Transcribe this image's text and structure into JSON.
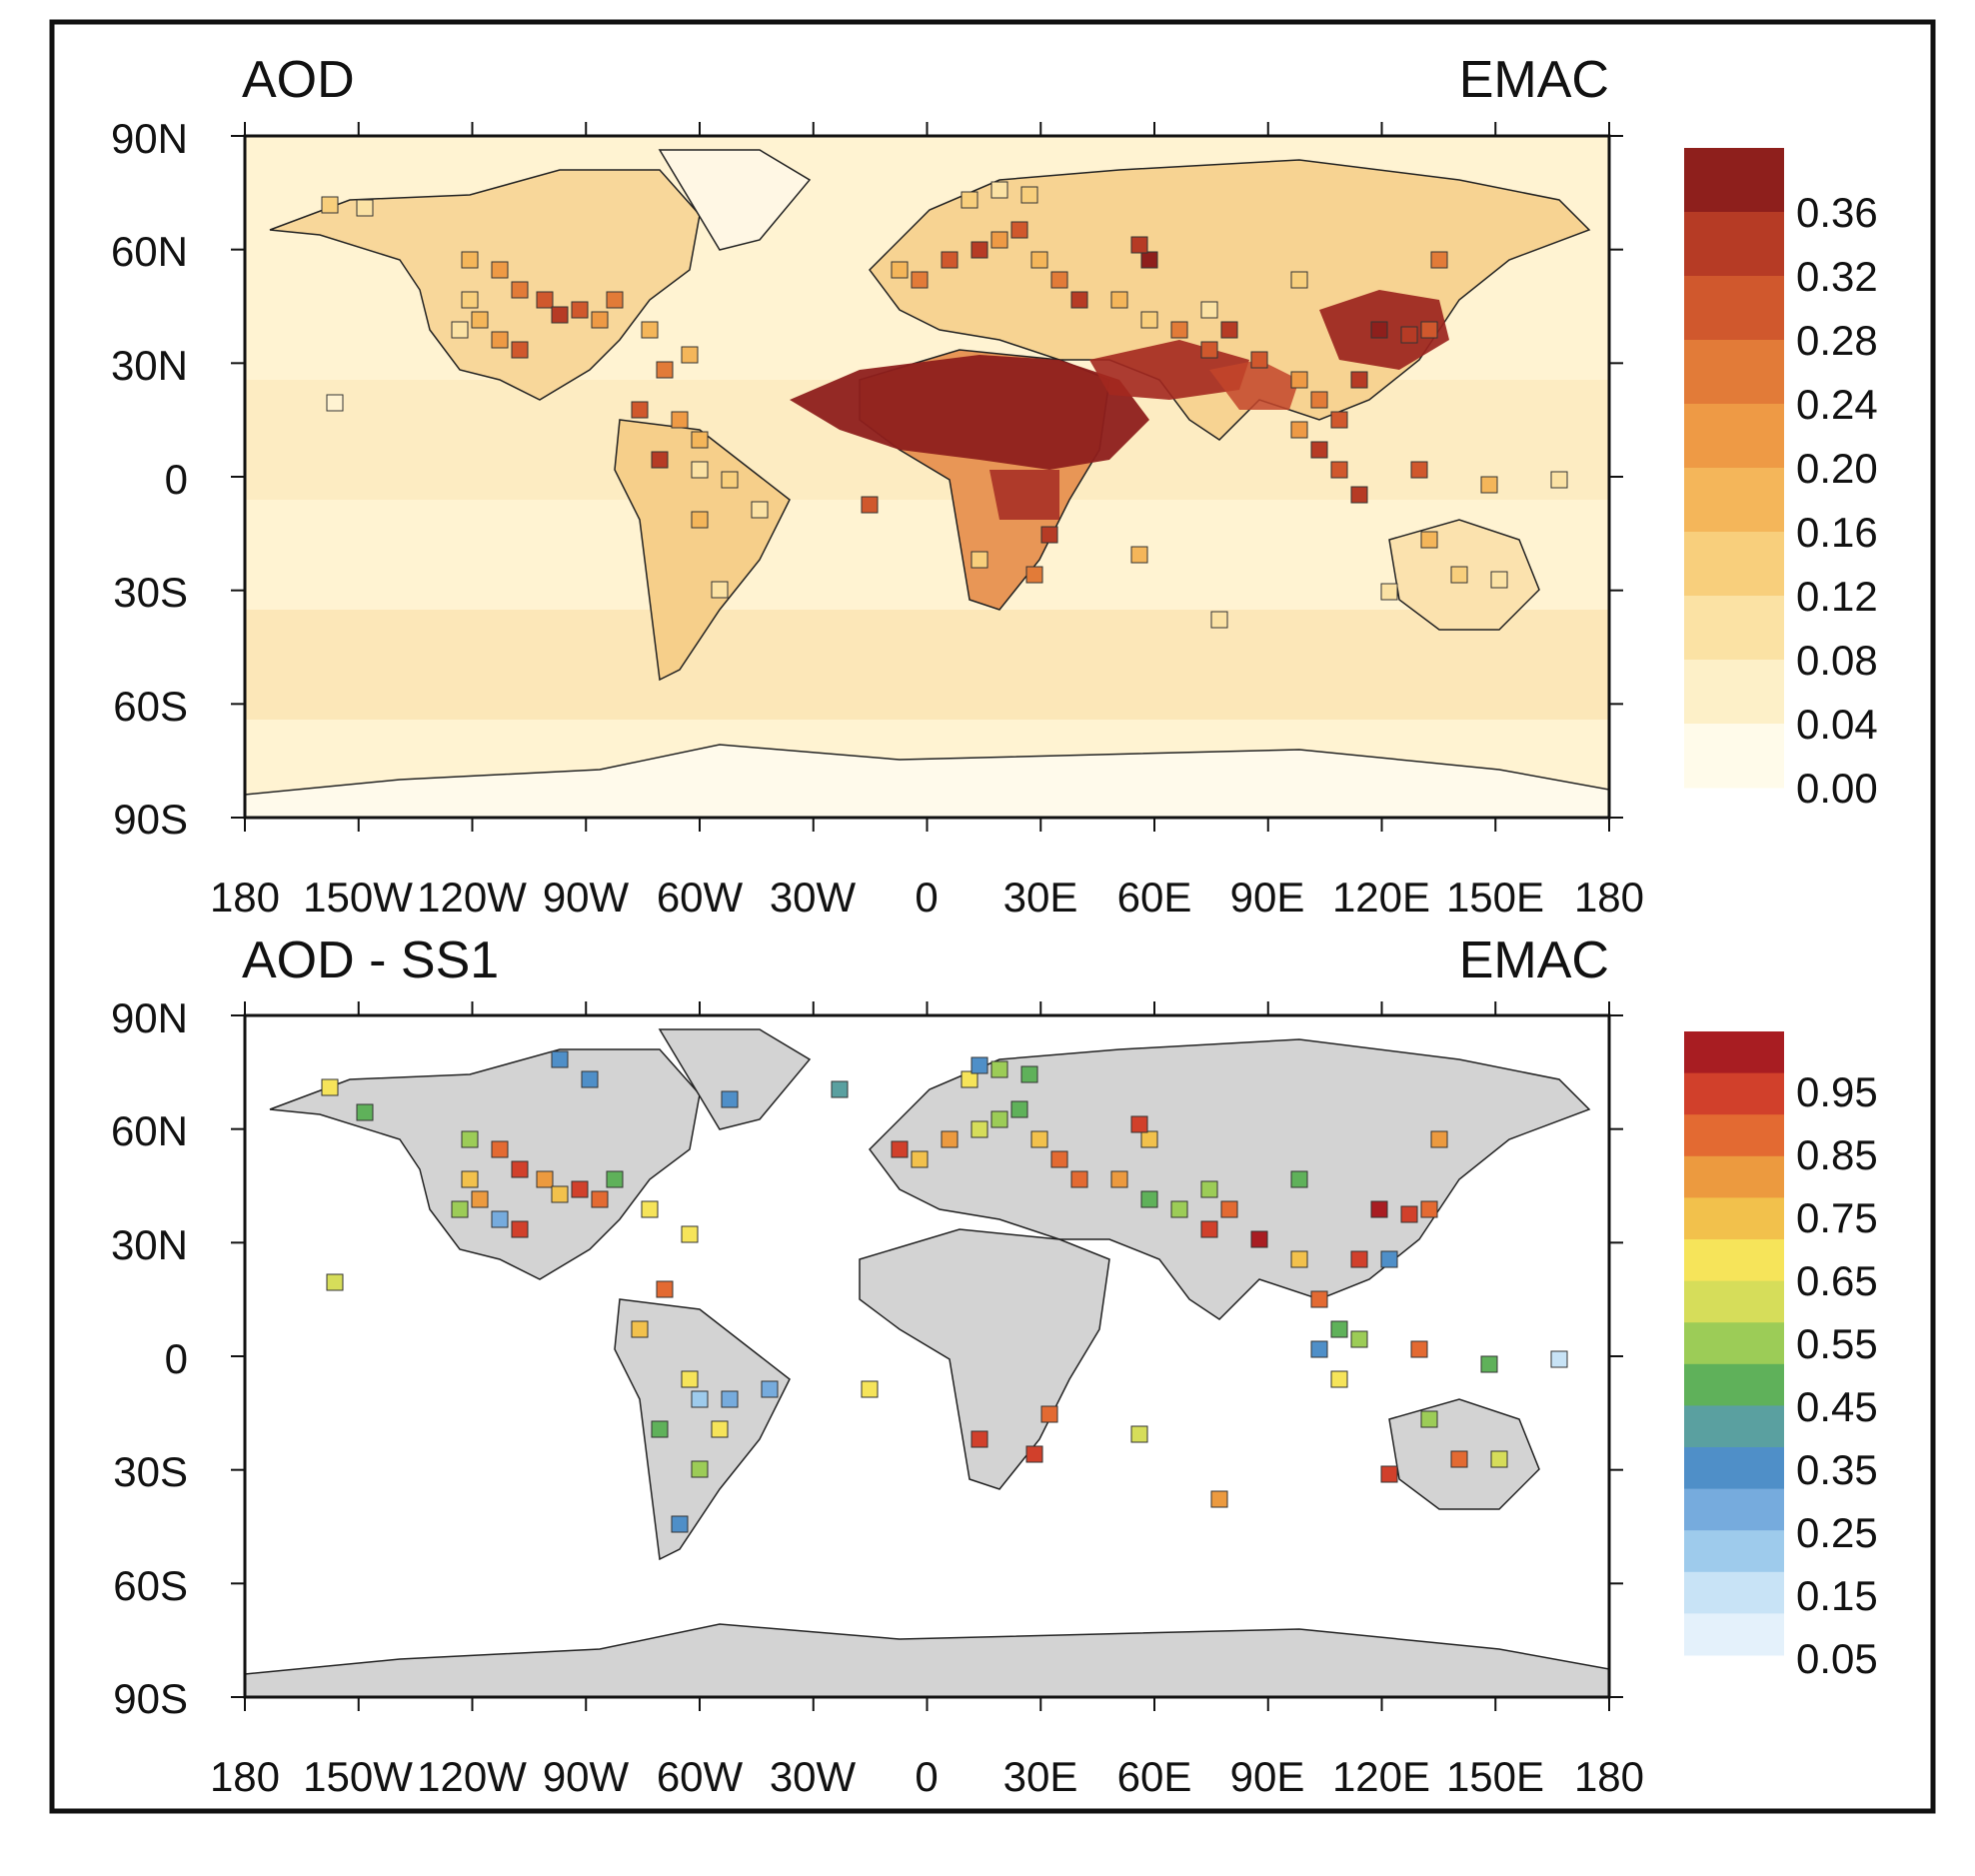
{
  "panels": [
    {
      "id": "aod",
      "title_left": "AOD",
      "title_right": "EMAC",
      "colorbar": {
        "labels": [
          "0.36",
          "0.32",
          "0.28",
          "0.24",
          "0.20",
          "0.16",
          "0.12",
          "0.08",
          "0.04",
          "0.00"
        ],
        "colors": [
          "#fffbea",
          "#fdf0c8",
          "#fbe2a4",
          "#f8cf7c",
          "#f4b65a",
          "#ee9a45",
          "#e27b38",
          "#d0582d",
          "#b63b25",
          "#8e1f1c"
        ]
      }
    },
    {
      "id": "aod-ss1",
      "title_left": "AOD - SS1",
      "title_right": "EMAC",
      "colorbar": {
        "labels": [
          "0.95",
          "0.85",
          "0.75",
          "0.65",
          "0.55",
          "0.45",
          "0.35",
          "0.25",
          "0.15",
          "0.05"
        ],
        "colors": [
          "#e4f1fb",
          "#c8e3f6",
          "#9ecbec",
          "#76abdd",
          "#4f8fc8",
          "#5aa0a0",
          "#5fb15a",
          "#9ccc57",
          "#d6dd5a",
          "#f6e45a",
          "#f2c14c",
          "#ec9a3f",
          "#e36a32",
          "#d1402b",
          "#a81d22"
        ]
      }
    }
  ],
  "axes": {
    "lat_ticks": [
      "90N",
      "60N",
      "30N",
      "0",
      "30S",
      "60S",
      "90S"
    ],
    "lon_ticks": [
      "180",
      "150W",
      "120W",
      "90W",
      "60W",
      "30W",
      "0",
      "30E",
      "60E",
      "90E",
      "120E",
      "150E",
      "180"
    ]
  },
  "map": {
    "ocean_color": "#fff3d2",
    "land_color_panel2": "#d3d3d3",
    "dust_color": "#8e1f1c"
  }
}
